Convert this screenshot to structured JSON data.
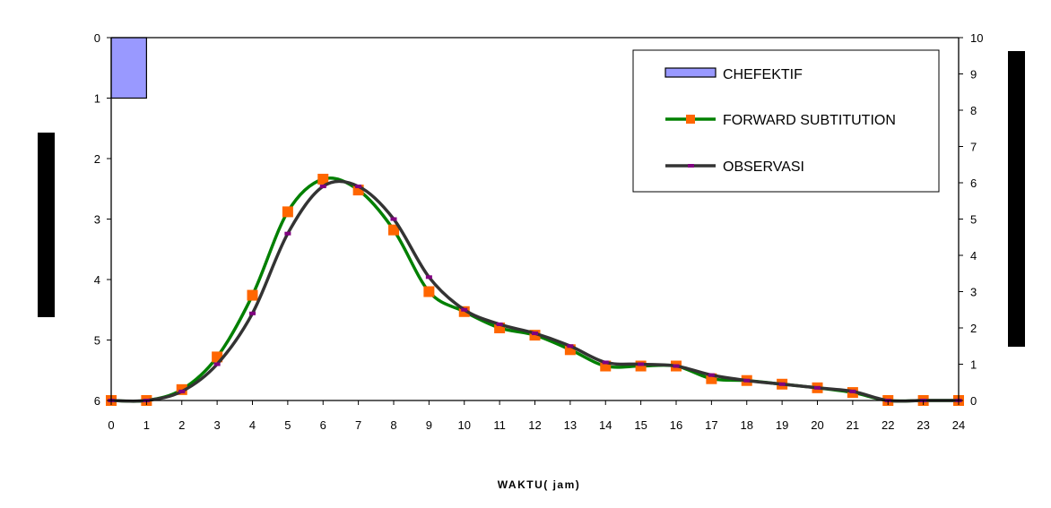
{
  "chart_data": {
    "type": "line",
    "title": "",
    "xlabel": "WAKTU( jam)",
    "x": [
      0,
      1,
      2,
      3,
      4,
      5,
      6,
      7,
      8,
      9,
      10,
      11,
      12,
      13,
      14,
      15,
      16,
      17,
      18,
      19,
      20,
      21,
      22,
      23,
      24
    ],
    "xlim": [
      0,
      24
    ],
    "xticks": [
      "0",
      "1",
      "2",
      "3",
      "4",
      "5",
      "6",
      "7",
      "8",
      "9",
      "10",
      "11",
      "12",
      "13",
      "14",
      "15",
      "16",
      "17",
      "18",
      "19",
      "20",
      "21",
      "22",
      "23",
      "24"
    ],
    "y_left": {
      "lim": [
        0,
        6
      ],
      "inverted": true,
      "ticks": [
        "0",
        "1",
        "2",
        "3",
        "4",
        "5",
        "6"
      ]
    },
    "y_right": {
      "lim": [
        0,
        10
      ],
      "ticks": [
        "0",
        "1",
        "2",
        "3",
        "4",
        "5",
        "6",
        "7",
        "8",
        "9",
        "10"
      ]
    },
    "series": [
      {
        "name": "CHEFEKTIF",
        "kind": "bar",
        "axis": "left",
        "x": [
          0.5
        ],
        "values": [
          1
        ],
        "color": "#9999ff"
      },
      {
        "name": "FORWARD SUBTITUTION",
        "kind": "line",
        "axis": "right",
        "color": "#008000",
        "marker_color": "#ff6600",
        "marker": "square",
        "values": [
          0,
          0,
          0.3,
          1.2,
          2.9,
          5.2,
          6.1,
          5.8,
          4.7,
          3.0,
          2.45,
          2.0,
          1.8,
          1.4,
          0.95,
          0.95,
          0.95,
          0.6,
          0.55,
          0.45,
          0.35,
          0.22,
          0,
          0,
          0
        ]
      },
      {
        "name": "OBSERVASI",
        "kind": "line",
        "axis": "right",
        "color": "#333333",
        "marker_color": "#800080",
        "marker": "dash",
        "values": [
          0,
          0,
          0.25,
          1.0,
          2.4,
          4.6,
          5.9,
          5.9,
          5.0,
          3.4,
          2.5,
          2.1,
          1.85,
          1.5,
          1.05,
          1.0,
          0.95,
          0.7,
          0.55,
          0.45,
          0.35,
          0.25,
          0,
          0,
          0
        ]
      }
    ],
    "legend": {
      "position": "top-right",
      "entries": [
        "CHEFEKTIF",
        "FORWARD SUBTITUTION",
        "OBSERVASI"
      ]
    },
    "grid": false
  }
}
